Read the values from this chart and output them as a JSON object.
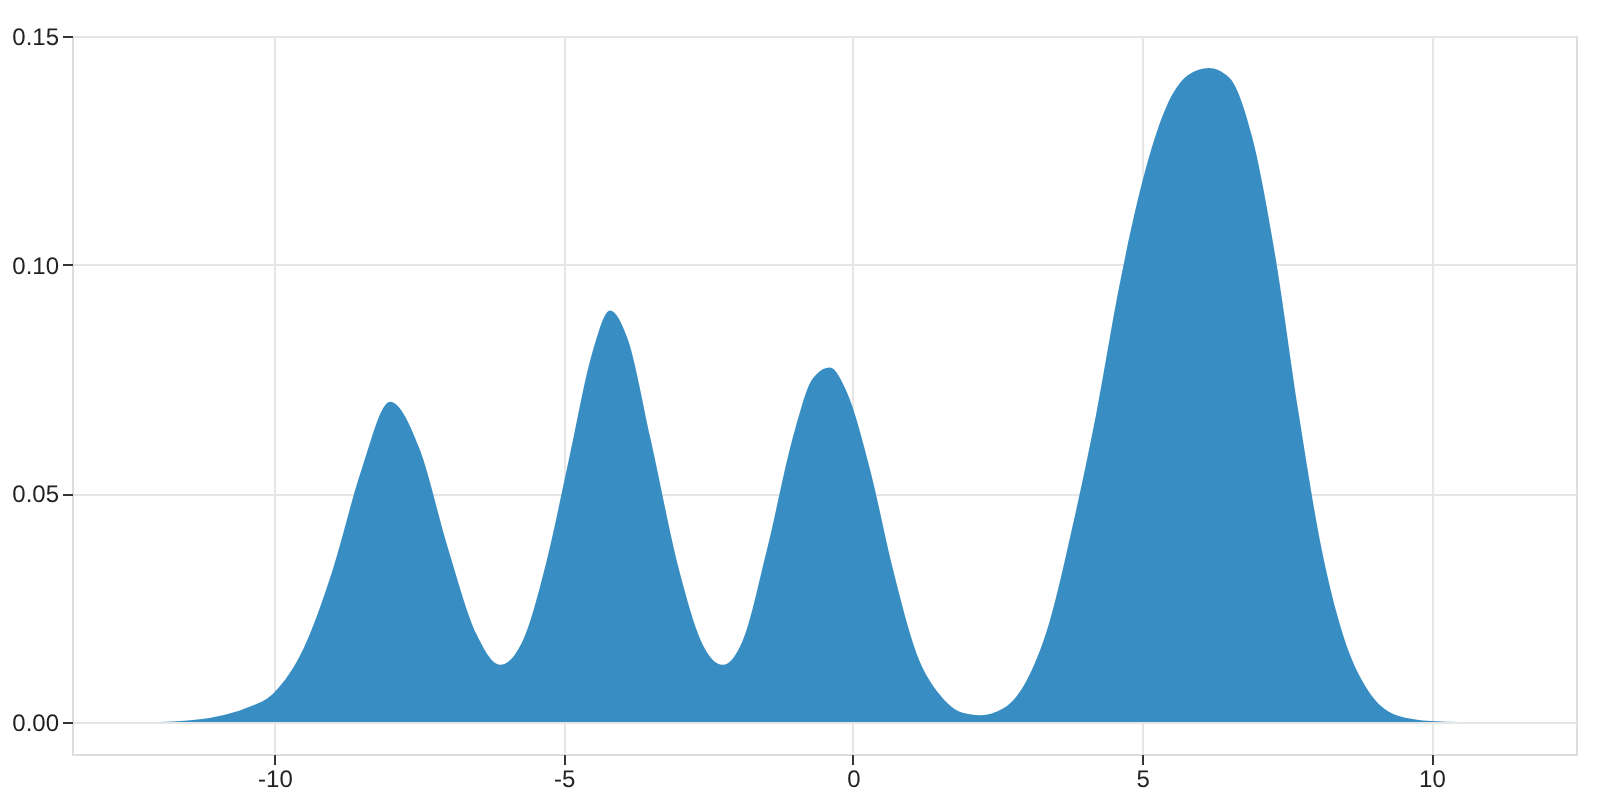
{
  "chart_data": {
    "type": "area",
    "x": [
      -12,
      -11.5,
      -11,
      -10.5,
      -10,
      -9.5,
      -9,
      -8.5,
      -8,
      -7.5,
      -7,
      -6.5,
      -6.1,
      -5.7,
      -5.3,
      -4.9,
      -4.5,
      -4.2,
      -3.9,
      -3.5,
      -3.0,
      -2.6,
      -2.25,
      -1.9,
      -1.5,
      -1.0,
      -0.7,
      -0.4,
      -0.1,
      0.3,
      0.7,
      1.1,
      1.5,
      1.9,
      2.2,
      2.6,
      3.0,
      3.4,
      3.8,
      4.2,
      4.6,
      5.0,
      5.4,
      5.8,
      6.15,
      6.5,
      6.9,
      7.3,
      7.7,
      8.1,
      8.5,
      8.9,
      9.3,
      9.7,
      10.0,
      10.5
    ],
    "series": [
      {
        "color": "#388ec3",
        "values": [
          0,
          0.0003,
          0.0012,
          0.003,
          0.0065,
          0.016,
          0.033,
          0.055,
          0.07,
          0.06,
          0.038,
          0.019,
          0.0125,
          0.018,
          0.035,
          0.058,
          0.081,
          0.09,
          0.084,
          0.062,
          0.033,
          0.017,
          0.0125,
          0.018,
          0.037,
          0.064,
          0.075,
          0.0775,
          0.072,
          0.055,
          0.033,
          0.015,
          0.006,
          0.002,
          0.0015,
          0.003,
          0.009,
          0.022,
          0.043,
          0.067,
          0.095,
          0.118,
          0.134,
          0.1415,
          0.143,
          0.141,
          0.128,
          0.102,
          0.068,
          0.038,
          0.018,
          0.007,
          0.002,
          0.0006,
          0.0002,
          0
        ]
      }
    ],
    "xlim": [
      -13.5,
      12.5
    ],
    "xticks": [
      -10,
      -5,
      0,
      5,
      10
    ],
    "ylim": [
      -0.007,
      0.15
    ],
    "yticks": [
      {
        "value": 0,
        "label": "0.00"
      },
      {
        "value": 0.05,
        "label": "0.05"
      },
      {
        "value": 0.1,
        "label": "0.10"
      },
      {
        "value": 0.15,
        "label": "0.15"
      }
    ],
    "grid": true
  }
}
